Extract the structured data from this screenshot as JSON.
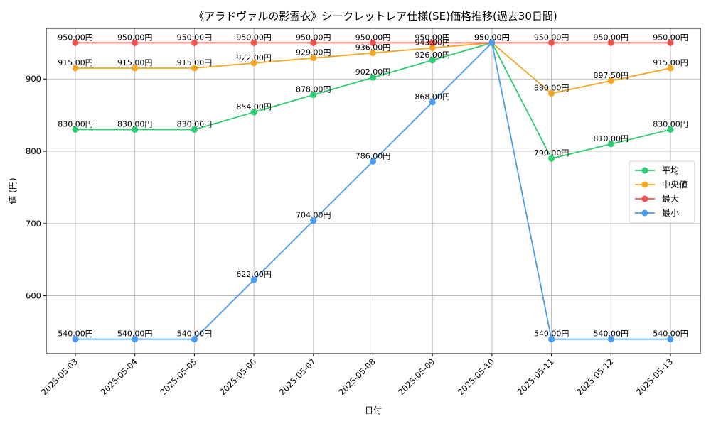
{
  "chart_data": {
    "type": "line",
    "title": "《アラドヴァルの影霊衣》シークレットレア仕様(SE)価格推移(過去30日間)",
    "xlabel": "日付",
    "ylabel": "値 (円)",
    "categories": [
      "2025-05-03",
      "2025-05-04",
      "2025-05-05",
      "2025-05-06",
      "2025-05-07",
      "2025-05-08",
      "2025-05-09",
      "2025-05-10",
      "2025-05-11",
      "2025-05-12",
      "2025-05-13"
    ],
    "ylim": [
      520,
      970
    ],
    "yticks": [
      600,
      700,
      800,
      900
    ],
    "grid": true,
    "legend_position": "center-right",
    "series": [
      {
        "name": "平均",
        "color": "#2ecc71",
        "values": [
          830,
          830,
          830,
          854,
          878,
          902,
          926,
          950,
          790,
          810,
          830
        ],
        "labels": [
          "830.00円",
          "830.00円",
          "830.00円",
          "854.00円",
          "878.00円",
          "902.00円",
          "926.00円",
          "950.00円",
          "790.00円",
          "810.00円",
          "830.00円"
        ]
      },
      {
        "name": "中央値",
        "color": "#f5a623",
        "values": [
          915,
          915,
          915,
          922,
          929,
          936,
          943,
          950,
          880,
          897.5,
          915
        ],
        "labels": [
          "915.00円",
          "915.00円",
          "915.00円",
          "922.00円",
          "929.00円",
          "936.00円",
          "943.00円",
          "950.00円",
          "880.00円",
          "897.50円",
          "915.00円"
        ]
      },
      {
        "name": "最大",
        "color": "#f0524f",
        "values": [
          950,
          950,
          950,
          950,
          950,
          950,
          950,
          950,
          950,
          950,
          950
        ],
        "labels": [
          "950.00円",
          "950.00円",
          "950.00円",
          "950.00円",
          "950.00円",
          "950.00円",
          "950.00円",
          "950.00円",
          "950.00円",
          "950.00円",
          "950.00円"
        ]
      },
      {
        "name": "最小",
        "color": "#4a9cf0",
        "values": [
          540,
          540,
          540,
          622,
          704,
          786,
          868,
          950,
          540,
          540,
          540
        ],
        "labels": [
          "540.00円",
          "540.00円",
          "540.00円",
          "622.00円",
          "704.00円",
          "786.00円",
          "868.00円",
          "950.00円",
          "540.00円",
          "540.00円",
          "540.00円"
        ]
      }
    ]
  }
}
